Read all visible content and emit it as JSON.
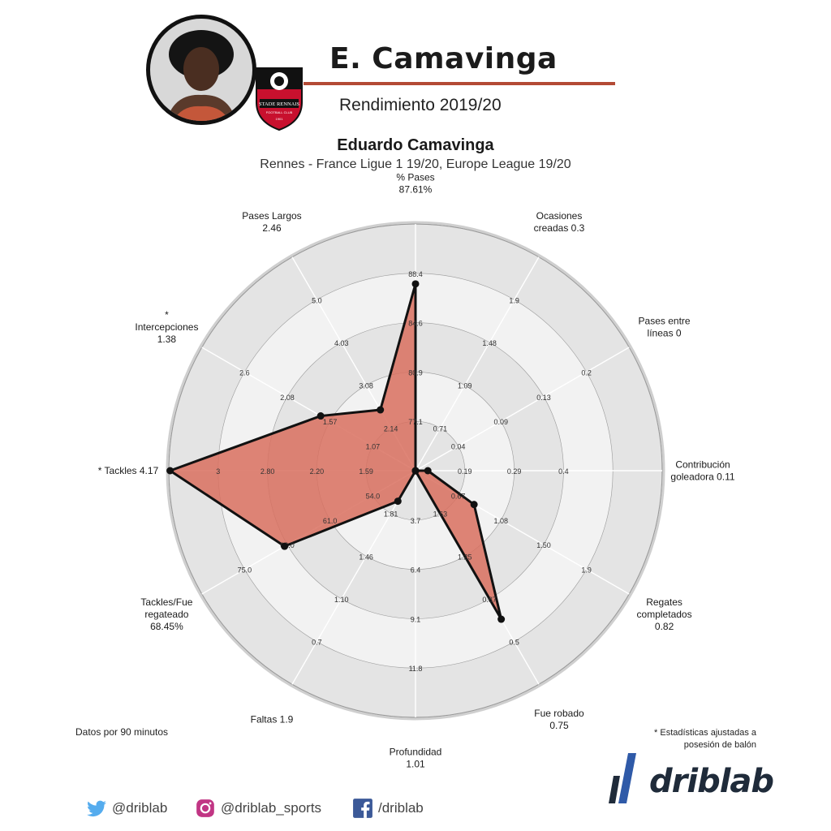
{
  "header": {
    "player_name": "E. Camavinga",
    "season_title": "Rendimiento 2019/20",
    "crest_text_line1": "STADE RENNAIS",
    "crest_text_line2": "FOOTBALL CLUB",
    "crest_year": "1901"
  },
  "colors": {
    "accent_rule": "#b34a35",
    "fill": "#d9705f",
    "outline": "#111111",
    "ring_dark": "#e4e4e4",
    "ring_light": "#f2f2f2",
    "twitter": "#55acee",
    "instagram": "#c13584",
    "facebook": "#3b5998",
    "brand_mark": "#2f5aa8"
  },
  "chart_data": {
    "type": "radar",
    "title": "Eduardo Camavinga",
    "subtitle": "Rennes - France Ligue 1 19/20, Europe League 19/20",
    "axes": [
      {
        "label": "% Pases\n87.61%",
        "value": 87.61,
        "min": 73.3,
        "max": 92.2,
        "ticks": [
          "77.1",
          "80.9",
          "84.6",
          "88.4"
        ]
      },
      {
        "label": "Ocasiones\ncreadas 0.3",
        "value": 0.3,
        "min": 0.32,
        "max": 2.3,
        "ticks": [
          "0.71",
          "1.09",
          "1.48",
          "1.9"
        ]
      },
      {
        "label": "Pases entre\nlíneas 0",
        "value": 0,
        "min": 0.0,
        "max": 0.25,
        "ticks": [
          "0.04",
          "0.09",
          "0.13",
          "0.2"
        ]
      },
      {
        "label": "Contribución\ngoleadora 0.11",
        "value": 0.11,
        "min": 0.09,
        "max": 0.49,
        "ticks": [
          "0.19",
          "0.29",
          "0.4"
        ]
      },
      {
        "label": "Regates\ncompletados\n0.82",
        "value": 0.82,
        "min": 0.25,
        "max": 2.33,
        "ticks": [
          "0.67",
          "1.08",
          "1.50",
          "1.9"
        ]
      },
      {
        "label": "Fue robado\n0.75",
        "value": 0.75,
        "min": 2.46,
        "max": 0.0,
        "ticks": [
          "1.63",
          "1.25",
          "0.87",
          "0.5"
        ]
      },
      {
        "label": "Profundidad\n1.01",
        "value": 1.01,
        "min": 1.0,
        "max": 14.5,
        "ticks": [
          "3.7",
          "6.4",
          "9.1",
          "11.8"
        ]
      },
      {
        "label": "Faltas 1.9",
        "value": 1.9,
        "min": 2.16,
        "max": 0.34,
        "ticks": [
          "1.81",
          "1.46",
          "1.10",
          "0.7"
        ]
      },
      {
        "label": "Tackles/Fue\nregateado\n68.45%",
        "value": 68.45,
        "min": 47.0,
        "max": 82.0,
        "ticks": [
          "54.0",
          "61.0",
          "68.0",
          "75.0"
        ]
      },
      {
        "label": "* Tackles 4.17",
        "value": 4.17,
        "min": 0.38,
        "max": 4.19,
        "ticks": [
          "1.59",
          "2.20",
          "2.80",
          "3"
        ]
      },
      {
        "label": "*\nIntercepciones\n1.38",
        "value": 1.38,
        "min": 0.04,
        "max": 3.06,
        "ticks": [
          "1.07",
          "1.57",
          "2.08",
          "2.6"
        ]
      },
      {
        "label": "Pases Largos\n2.46",
        "value": 2.46,
        "min": 1.11,
        "max": 5.85,
        "ticks": [
          "2.14",
          "3.08",
          "4.03",
          "5.0"
        ]
      }
    ],
    "rings": 5
  },
  "footer": {
    "note_left": "Datos por 90 minutos",
    "note_right": "* Estadísticas ajustadas a posesión de balón",
    "twitter_handle": "@driblab",
    "instagram_handle": "@driblab_sports",
    "facebook_handle": "/driblab",
    "brand_name": "driblab"
  }
}
